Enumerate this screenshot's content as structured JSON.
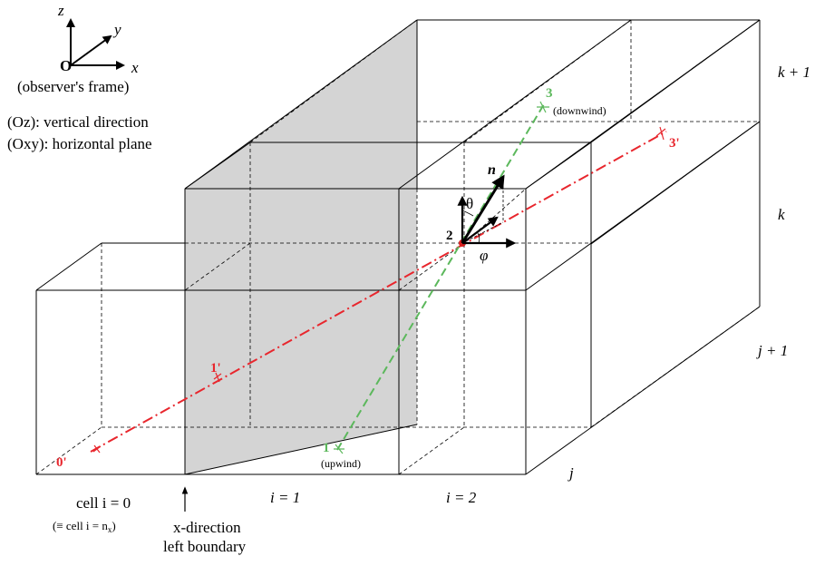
{
  "frame": {
    "axis_z": "z",
    "axis_y": "y",
    "axis_x": "x",
    "origin": "O",
    "caption": "(observer's frame)",
    "oz_note": "(Oz): vertical direction",
    "oxy_note": "(Oxy): horizontal plane"
  },
  "levels": {
    "k_plus_1": "k + 1",
    "k": "k",
    "j_plus_1": "j + 1",
    "j": "j"
  },
  "cells": {
    "cell0_line1": "cell i = 0",
    "cell0_line2": "(≡ cell i = n",
    "cell0_sub": "x",
    "cell0_close": ")",
    "i1": "i = 1",
    "i2": "i = 2"
  },
  "boundary": {
    "line1": "x-direction",
    "line2": "left boundary"
  },
  "points": {
    "p0p": "0'",
    "p1p": "1'",
    "p3p": "3'",
    "p1": "1",
    "p1_note": "(upwind)",
    "p2": "2",
    "p3": "3",
    "p3_note": "(downwind)"
  },
  "vectors": {
    "normal": "n",
    "theta": "θ",
    "phi": "φ"
  },
  "colors": {
    "red_path": "#e8262d",
    "green_path": "#5cb85c",
    "boundary_fill": "#d4d4d4"
  }
}
